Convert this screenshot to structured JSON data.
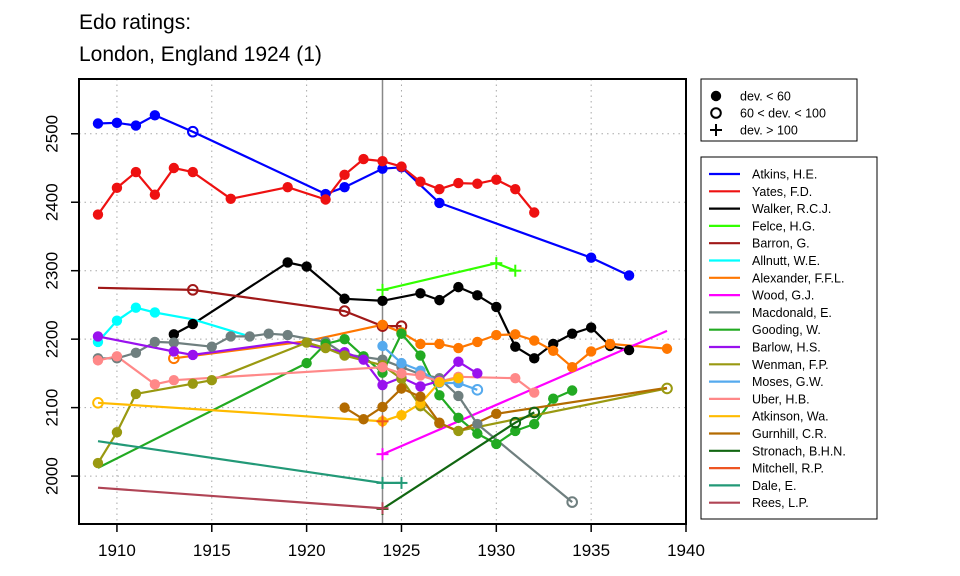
{
  "chart_data": {
    "type": "line",
    "title": "Edo ratings:",
    "subtitle": "London, England 1924 (1)",
    "xlabel": "",
    "ylabel": "",
    "xlim": [
      1908,
      1940
    ],
    "ylim": [
      1930,
      2580
    ],
    "x_ticks": [
      1910,
      1915,
      1920,
      1925,
      1930,
      1935,
      1940
    ],
    "y_ticks": [
      2000,
      2100,
      2200,
      2300,
      2400,
      2500
    ],
    "grid": "dotted",
    "event_year": 1924,
    "marker_legend": {
      "placement": "top-right",
      "items": [
        {
          "marker": "filled-circle",
          "label": "dev. < 60"
        },
        {
          "marker": "open-circle",
          "label": "60 < dev. < 100"
        },
        {
          "marker": "plus",
          "label": "dev. > 100"
        }
      ]
    },
    "series": [
      {
        "name": "Atkins, H.E.",
        "color": "#0000FF",
        "points": [
          [
            1909,
            2515,
            "f"
          ],
          [
            1910,
            2516,
            "f"
          ],
          [
            1911,
            2512,
            "f"
          ],
          [
            1912,
            2527,
            "f"
          ],
          [
            1914,
            2503,
            "o"
          ],
          [
            1921,
            2412,
            "f"
          ],
          [
            1922,
            2422,
            "f"
          ],
          [
            1924,
            2449,
            "f"
          ],
          [
            1925,
            2451,
            "f"
          ],
          [
            1927,
            2399,
            "f"
          ],
          [
            1935,
            2319,
            "f"
          ],
          [
            1937,
            2293,
            "f"
          ]
        ]
      },
      {
        "name": "Yates, F.D.",
        "color": "#EE1111",
        "points": [
          [
            1909,
            2382,
            "f"
          ],
          [
            1910,
            2421,
            "f"
          ],
          [
            1911,
            2444,
            "f"
          ],
          [
            1912,
            2411,
            "f"
          ],
          [
            1913,
            2450,
            "f"
          ],
          [
            1914,
            2444,
            "f"
          ],
          [
            1916,
            2405,
            "f"
          ],
          [
            1919,
            2422,
            "f"
          ],
          [
            1921,
            2404,
            "f"
          ],
          [
            1922,
            2440,
            "f"
          ],
          [
            1923,
            2463,
            "f"
          ],
          [
            1924,
            2460,
            "f"
          ],
          [
            1925,
            2452,
            "f"
          ],
          [
            1926,
            2430,
            "f"
          ],
          [
            1927,
            2419,
            "f"
          ],
          [
            1928,
            2428,
            "f"
          ],
          [
            1929,
            2427,
            "f"
          ],
          [
            1930,
            2433,
            "f"
          ],
          [
            1931,
            2419,
            "f"
          ],
          [
            1932,
            2385,
            "f"
          ]
        ]
      },
      {
        "name": "Walker, R.C.J.",
        "color": "#000000",
        "points": [
          [
            1913,
            2207,
            "f"
          ],
          [
            1914,
            2222,
            "f"
          ],
          [
            1919,
            2312,
            "f"
          ],
          [
            1920,
            2306,
            "f"
          ],
          [
            1922,
            2259,
            "f"
          ],
          [
            1924,
            2256,
            "f"
          ],
          [
            1926,
            2267,
            "f"
          ],
          [
            1927,
            2257,
            "f"
          ],
          [
            1928,
            2276,
            "f"
          ],
          [
            1929,
            2264,
            "f"
          ],
          [
            1930,
            2247,
            "f"
          ],
          [
            1931,
            2189,
            "f"
          ],
          [
            1932,
            2172,
            "f"
          ],
          [
            1933,
            2193,
            "f"
          ],
          [
            1934,
            2208,
            "f"
          ],
          [
            1935,
            2217,
            "f"
          ],
          [
            1936,
            2190,
            "f"
          ],
          [
            1937,
            2184,
            "f"
          ]
        ]
      },
      {
        "name": "Felce, H.G.",
        "color": "#33FF00",
        "points": [
          [
            1924,
            2272,
            "p"
          ],
          [
            1930,
            2311,
            "p"
          ],
          [
            1931,
            2300,
            "p"
          ]
        ]
      },
      {
        "name": "Barron, G.",
        "color": "#A01818",
        "points": [
          [
            1909,
            2275,
            "n"
          ],
          [
            1914,
            2272,
            "o"
          ],
          [
            1922,
            2241,
            "o"
          ],
          [
            1924,
            2219,
            "o"
          ],
          [
            1925,
            2219,
            "o"
          ]
        ]
      },
      {
        "name": "Allnutt, W.E.",
        "color": "#00FFFF",
        "points": [
          [
            1909,
            2196,
            "f"
          ],
          [
            1910,
            2227,
            "f"
          ],
          [
            1911,
            2246,
            "f"
          ],
          [
            1912,
            2239,
            "f"
          ],
          [
            1914,
            2229,
            "n"
          ],
          [
            1917,
            2204,
            "n"
          ]
        ]
      },
      {
        "name": "Alexander, F.F.L.",
        "color": "#FF7700",
        "points": [
          [
            1913,
            2172,
            "o"
          ],
          [
            1920,
            2197,
            "n"
          ],
          [
            1924,
            2221,
            "f"
          ],
          [
            1925,
            2210,
            "f"
          ],
          [
            1926,
            2193,
            "f"
          ],
          [
            1927,
            2193,
            "f"
          ],
          [
            1928,
            2187,
            "f"
          ],
          [
            1929,
            2196,
            "f"
          ],
          [
            1930,
            2206,
            "f"
          ],
          [
            1931,
            2207,
            "f"
          ],
          [
            1932,
            2198,
            "f"
          ],
          [
            1933,
            2183,
            "f"
          ],
          [
            1934,
            2159,
            "f"
          ],
          [
            1935,
            2182,
            "f"
          ],
          [
            1936,
            2193,
            "f"
          ],
          [
            1939,
            2186,
            "f"
          ]
        ]
      },
      {
        "name": "Wood, G.J.",
        "color": "#FF00FF",
        "points": [
          [
            1924,
            2032,
            "p"
          ],
          [
            1939,
            2212,
            "n"
          ]
        ]
      },
      {
        "name": "Macdonald, E.",
        "color": "#6F7F7F",
        "points": [
          [
            1909,
            2172,
            "f"
          ],
          [
            1910,
            2172,
            "f"
          ],
          [
            1911,
            2180,
            "f"
          ],
          [
            1912,
            2196,
            "f"
          ],
          [
            1913,
            2195,
            "f"
          ],
          [
            1915,
            2189,
            "f"
          ],
          [
            1916,
            2204,
            "f"
          ],
          [
            1917,
            2204,
            "f"
          ],
          [
            1918,
            2208,
            "f"
          ],
          [
            1919,
            2206,
            "f"
          ],
          [
            1921,
            2196,
            "f"
          ],
          [
            1922,
            2178,
            "f"
          ],
          [
            1924,
            2170,
            "f"
          ],
          [
            1925,
            2159,
            "f"
          ],
          [
            1926,
            2149,
            "f"
          ],
          [
            1927,
            2143,
            "f"
          ],
          [
            1928,
            2117,
            "f"
          ],
          [
            1929,
            2076,
            "f"
          ],
          [
            1934,
            1962,
            "o"
          ]
        ]
      },
      {
        "name": "Gooding, W.",
        "color": "#22AA22",
        "points": [
          [
            1909,
            2012,
            "n"
          ],
          [
            1920,
            2165,
            "f"
          ],
          [
            1921,
            2193,
            "f"
          ],
          [
            1922,
            2200,
            "f"
          ],
          [
            1923,
            2175,
            "f"
          ],
          [
            1924,
            2151,
            "f"
          ],
          [
            1925,
            2208,
            "f"
          ],
          [
            1926,
            2176,
            "f"
          ],
          [
            1927,
            2118,
            "f"
          ],
          [
            1928,
            2085,
            "f"
          ],
          [
            1929,
            2062,
            "f"
          ],
          [
            1930,
            2047,
            "f"
          ],
          [
            1931,
            2066,
            "f"
          ],
          [
            1932,
            2076,
            "f"
          ],
          [
            1933,
            2113,
            "f"
          ],
          [
            1934,
            2125,
            "f"
          ]
        ]
      },
      {
        "name": "Barlow, H.S.",
        "color": "#9911EE",
        "points": [
          [
            1909,
            2204,
            "f"
          ],
          [
            1913,
            2182,
            "f"
          ],
          [
            1914,
            2177,
            "f"
          ],
          [
            1919,
            2196,
            "n"
          ],
          [
            1922,
            2181,
            "f"
          ],
          [
            1923,
            2170,
            "f"
          ],
          [
            1924,
            2133,
            "f"
          ],
          [
            1925,
            2144,
            "f"
          ],
          [
            1926,
            2131,
            "f"
          ],
          [
            1927,
            2139,
            "f"
          ],
          [
            1928,
            2167,
            "f"
          ],
          [
            1929,
            2150,
            "f"
          ]
        ]
      },
      {
        "name": "Wenman, F.P.",
        "color": "#999911",
        "points": [
          [
            1909,
            2019,
            "f"
          ],
          [
            1910,
            2064,
            "f"
          ],
          [
            1911,
            2120,
            "f"
          ],
          [
            1914,
            2135,
            "f"
          ],
          [
            1915,
            2140,
            "f"
          ],
          [
            1920,
            2195,
            "f"
          ],
          [
            1921,
            2187,
            "f"
          ],
          [
            1922,
            2176,
            "f"
          ],
          [
            1924,
            2162,
            "f"
          ],
          [
            1925,
            2142,
            "f"
          ],
          [
            1926,
            2102,
            "f"
          ],
          [
            1927,
            2077,
            "f"
          ],
          [
            1928,
            2066,
            "f"
          ],
          [
            1939,
            2128,
            "o"
          ]
        ]
      },
      {
        "name": "Moses, G.W.",
        "color": "#55AAEE",
        "points": [
          [
            1924,
            2190,
            "f"
          ],
          [
            1925,
            2165,
            "f"
          ],
          [
            1926,
            2154,
            "f"
          ],
          [
            1927,
            2136,
            "f"
          ],
          [
            1928,
            2136,
            "f"
          ],
          [
            1929,
            2126,
            "o"
          ]
        ]
      },
      {
        "name": "Uber, H.B.",
        "color": "#FF8888",
        "points": [
          [
            1909,
            2169,
            "f"
          ],
          [
            1910,
            2175,
            "f"
          ],
          [
            1912,
            2134,
            "f"
          ],
          [
            1913,
            2140,
            "f"
          ],
          [
            1924,
            2159,
            "f"
          ],
          [
            1925,
            2150,
            "f"
          ],
          [
            1926,
            2147,
            "f"
          ],
          [
            1927,
            2138,
            "f"
          ],
          [
            1928,
            2145,
            "f"
          ],
          [
            1931,
            2143,
            "f"
          ],
          [
            1932,
            2122,
            "f"
          ]
        ]
      },
      {
        "name": "Atkinson, Wa.",
        "color": "#FFBB00",
        "points": [
          [
            1909,
            2107,
            "o"
          ],
          [
            1924,
            2080,
            "f"
          ],
          [
            1925,
            2089,
            "f"
          ],
          [
            1926,
            2106,
            "f"
          ],
          [
            1927,
            2137,
            "f"
          ],
          [
            1928,
            2143,
            "f"
          ]
        ]
      },
      {
        "name": "Gurnhill, C.R.",
        "color": "#B36B00",
        "points": [
          [
            1922,
            2100,
            "f"
          ],
          [
            1923,
            2083,
            "f"
          ],
          [
            1924,
            2101,
            "f"
          ],
          [
            1925,
            2128,
            "f"
          ],
          [
            1926,
            2116,
            "f"
          ],
          [
            1927,
            2078,
            "f"
          ],
          [
            1928,
            2065,
            "n"
          ],
          [
            1930,
            2091,
            "f"
          ],
          [
            1939,
            2129,
            "n"
          ]
        ]
      },
      {
        "name": "Stronach, B.H.N.",
        "color": "#116611",
        "points": [
          [
            1924,
            1952,
            "p"
          ],
          [
            1931,
            2078,
            "o"
          ],
          [
            1932,
            2093,
            "o"
          ]
        ]
      },
      {
        "name": "Mitchell, R.P.",
        "color": "#EE5522",
        "points": [
          [
            1924,
            2080,
            "p"
          ]
        ]
      },
      {
        "name": "Dale, E.",
        "color": "#229977",
        "points": [
          [
            1909,
            2051,
            "n"
          ],
          [
            1924,
            1990,
            "p"
          ],
          [
            1925,
            1990,
            "p"
          ]
        ]
      },
      {
        "name": "Rees, L.P.",
        "color": "#B04455",
        "points": [
          [
            1909,
            1983,
            "n"
          ],
          [
            1924,
            1953,
            "p"
          ]
        ]
      }
    ]
  }
}
